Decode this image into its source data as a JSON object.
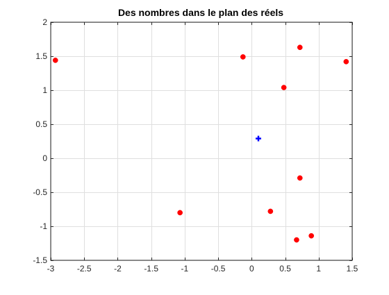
{
  "chart_data": {
    "type": "scatter",
    "title": "Des nombres dans le plan des réels",
    "xlabel": "",
    "ylabel": "",
    "xlim": [
      -3,
      1.5
    ],
    "ylim": [
      -1.5,
      2
    ],
    "xticks": [
      -3,
      -2.5,
      -2,
      -1.5,
      -1,
      -0.5,
      0,
      0.5,
      1,
      1.5
    ],
    "xtick_labels": [
      "-3",
      "-2.5",
      "-2",
      "-1.5",
      "-1",
      "-0.5",
      "0",
      "0.5",
      "1",
      "1.5"
    ],
    "yticks": [
      -1.5,
      -1,
      -0.5,
      0,
      0.5,
      1,
      1.5,
      2
    ],
    "ytick_labels": [
      "-1.5",
      "-1",
      "-0.5",
      "0",
      "0.5",
      "1",
      "1.5",
      "2"
    ],
    "grid": true,
    "series": [
      {
        "color": "#ff0000",
        "marker": "circle",
        "points": [
          {
            "x": -2.93,
            "y": 1.44
          },
          {
            "x": -1.07,
            "y": -0.8
          },
          {
            "x": -0.13,
            "y": 1.49
          },
          {
            "x": 0.28,
            "y": -0.78
          },
          {
            "x": 0.48,
            "y": 1.04
          },
          {
            "x": 0.67,
            "y": -1.2
          },
          {
            "x": 0.72,
            "y": 1.63
          },
          {
            "x": 0.72,
            "y": -0.29
          },
          {
            "x": 0.89,
            "y": -1.14
          },
          {
            "x": 1.41,
            "y": 1.42
          }
        ]
      },
      {
        "color": "#0000ff",
        "marker": "plus",
        "points": [
          {
            "x": 0.1,
            "y": 0.29
          }
        ]
      }
    ]
  }
}
